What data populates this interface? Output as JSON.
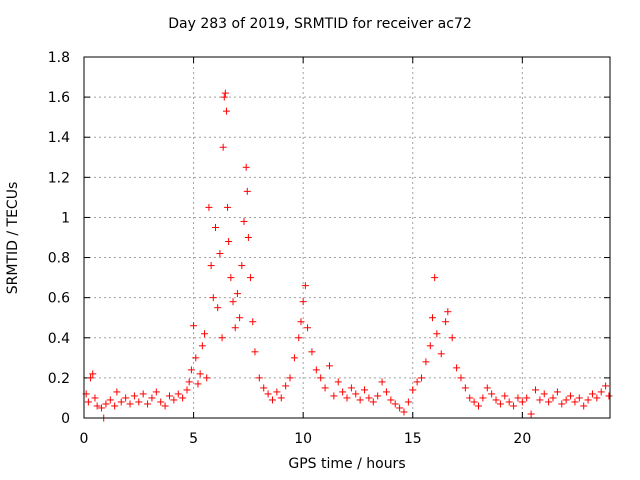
{
  "chart_data": {
    "type": "scatter",
    "title": "Day 283 of 2019, SRMTID for receiver ac72",
    "xlabel": "GPS time / hours",
    "ylabel": "SRMTID / TECUs",
    "xlim": [
      0,
      24
    ],
    "ylim": [
      0,
      1.8
    ],
    "xticks": [
      "0",
      "5",
      "10",
      "15",
      "20"
    ],
    "yticks": [
      "0",
      "0.2",
      "0.4",
      "0.6",
      "0.8",
      "1",
      "1.2",
      "1.4",
      "1.6",
      "1.8"
    ],
    "grid": true,
    "marker": "+",
    "color": "#ff0000",
    "series": [
      {
        "name": "SRMTID",
        "points": [
          [
            0.1,
            0.12
          ],
          [
            0.2,
            0.08
          ],
          [
            0.3,
            0.2
          ],
          [
            0.4,
            0.22
          ],
          [
            0.5,
            0.1
          ],
          [
            0.6,
            0.06
          ],
          [
            0.8,
            0.05
          ],
          [
            0.9,
            0.0
          ],
          [
            1.0,
            0.07
          ],
          [
            1.2,
            0.09
          ],
          [
            1.4,
            0.06
          ],
          [
            1.5,
            0.13
          ],
          [
            1.7,
            0.08
          ],
          [
            1.9,
            0.1
          ],
          [
            2.1,
            0.07
          ],
          [
            2.3,
            0.11
          ],
          [
            2.5,
            0.08
          ],
          [
            2.7,
            0.12
          ],
          [
            2.9,
            0.07
          ],
          [
            3.1,
            0.1
          ],
          [
            3.3,
            0.13
          ],
          [
            3.5,
            0.08
          ],
          [
            3.7,
            0.06
          ],
          [
            3.9,
            0.11
          ],
          [
            4.1,
            0.09
          ],
          [
            4.3,
            0.12
          ],
          [
            4.5,
            0.1
          ],
          [
            4.7,
            0.14
          ],
          [
            4.8,
            0.18
          ],
          [
            4.9,
            0.24
          ],
          [
            5.0,
            0.46
          ],
          [
            5.1,
            0.3
          ],
          [
            5.2,
            0.17
          ],
          [
            5.3,
            0.22
          ],
          [
            5.4,
            0.36
          ],
          [
            5.5,
            0.42
          ],
          [
            5.6,
            0.2
          ],
          [
            5.7,
            1.05
          ],
          [
            5.8,
            0.76
          ],
          [
            5.9,
            0.6
          ],
          [
            6.0,
            0.95
          ],
          [
            6.1,
            0.55
          ],
          [
            6.2,
            0.82
          ],
          [
            6.3,
            0.4
          ],
          [
            6.35,
            1.35
          ],
          [
            6.4,
            1.6
          ],
          [
            6.45,
            1.62
          ],
          [
            6.5,
            1.53
          ],
          [
            6.55,
            1.05
          ],
          [
            6.6,
            0.88
          ],
          [
            6.7,
            0.7
          ],
          [
            6.8,
            0.58
          ],
          [
            6.9,
            0.45
          ],
          [
            7.0,
            0.62
          ],
          [
            7.1,
            0.5
          ],
          [
            7.2,
            0.76
          ],
          [
            7.3,
            0.98
          ],
          [
            7.4,
            1.25
          ],
          [
            7.45,
            1.13
          ],
          [
            7.5,
            0.9
          ],
          [
            7.6,
            0.7
          ],
          [
            7.7,
            0.48
          ],
          [
            7.8,
            0.33
          ],
          [
            8.0,
            0.2
          ],
          [
            8.2,
            0.15
          ],
          [
            8.4,
            0.12
          ],
          [
            8.6,
            0.09
          ],
          [
            8.8,
            0.13
          ],
          [
            9.0,
            0.1
          ],
          [
            9.2,
            0.16
          ],
          [
            9.4,
            0.2
          ],
          [
            9.6,
            0.3
          ],
          [
            9.8,
            0.4
          ],
          [
            9.9,
            0.48
          ],
          [
            10.0,
            0.58
          ],
          [
            10.1,
            0.66
          ],
          [
            10.2,
            0.45
          ],
          [
            10.4,
            0.33
          ],
          [
            10.6,
            0.24
          ],
          [
            10.8,
            0.2
          ],
          [
            11.0,
            0.15
          ],
          [
            11.2,
            0.26
          ],
          [
            11.4,
            0.11
          ],
          [
            11.6,
            0.18
          ],
          [
            11.8,
            0.13
          ],
          [
            12.0,
            0.1
          ],
          [
            12.2,
            0.15
          ],
          [
            12.4,
            0.12
          ],
          [
            12.6,
            0.09
          ],
          [
            12.8,
            0.14
          ],
          [
            13.0,
            0.1
          ],
          [
            13.2,
            0.08
          ],
          [
            13.4,
            0.11
          ],
          [
            13.6,
            0.18
          ],
          [
            13.8,
            0.13
          ],
          [
            14.0,
            0.09
          ],
          [
            14.2,
            0.07
          ],
          [
            14.4,
            0.05
          ],
          [
            14.6,
            0.03
          ],
          [
            14.8,
            0.08
          ],
          [
            15.0,
            0.14
          ],
          [
            15.2,
            0.18
          ],
          [
            15.4,
            0.2
          ],
          [
            15.6,
            0.28
          ],
          [
            15.8,
            0.36
          ],
          [
            15.9,
            0.5
          ],
          [
            16.0,
            0.7
          ],
          [
            16.1,
            0.42
          ],
          [
            16.3,
            0.32
          ],
          [
            16.5,
            0.48
          ],
          [
            16.6,
            0.53
          ],
          [
            16.8,
            0.4
          ],
          [
            17.0,
            0.25
          ],
          [
            17.2,
            0.2
          ],
          [
            17.4,
            0.15
          ],
          [
            17.6,
            0.1
          ],
          [
            17.8,
            0.08
          ],
          [
            18.0,
            0.06
          ],
          [
            18.2,
            0.1
          ],
          [
            18.4,
            0.15
          ],
          [
            18.6,
            0.12
          ],
          [
            18.8,
            0.09
          ],
          [
            19.0,
            0.07
          ],
          [
            19.2,
            0.11
          ],
          [
            19.4,
            0.08
          ],
          [
            19.6,
            0.06
          ],
          [
            19.8,
            0.1
          ],
          [
            20.0,
            0.08
          ],
          [
            20.2,
            0.1
          ],
          [
            20.4,
            0.02
          ],
          [
            20.6,
            0.14
          ],
          [
            20.8,
            0.09
          ],
          [
            21.0,
            0.12
          ],
          [
            21.2,
            0.08
          ],
          [
            21.4,
            0.1
          ],
          [
            21.6,
            0.13
          ],
          [
            21.8,
            0.07
          ],
          [
            22.0,
            0.09
          ],
          [
            22.2,
            0.11
          ],
          [
            22.4,
            0.08
          ],
          [
            22.6,
            0.1
          ],
          [
            22.8,
            0.06
          ],
          [
            23.0,
            0.09
          ],
          [
            23.2,
            0.12
          ],
          [
            23.4,
            0.1
          ],
          [
            23.6,
            0.13
          ],
          [
            23.8,
            0.16
          ],
          [
            23.95,
            0.11
          ]
        ]
      }
    ]
  }
}
